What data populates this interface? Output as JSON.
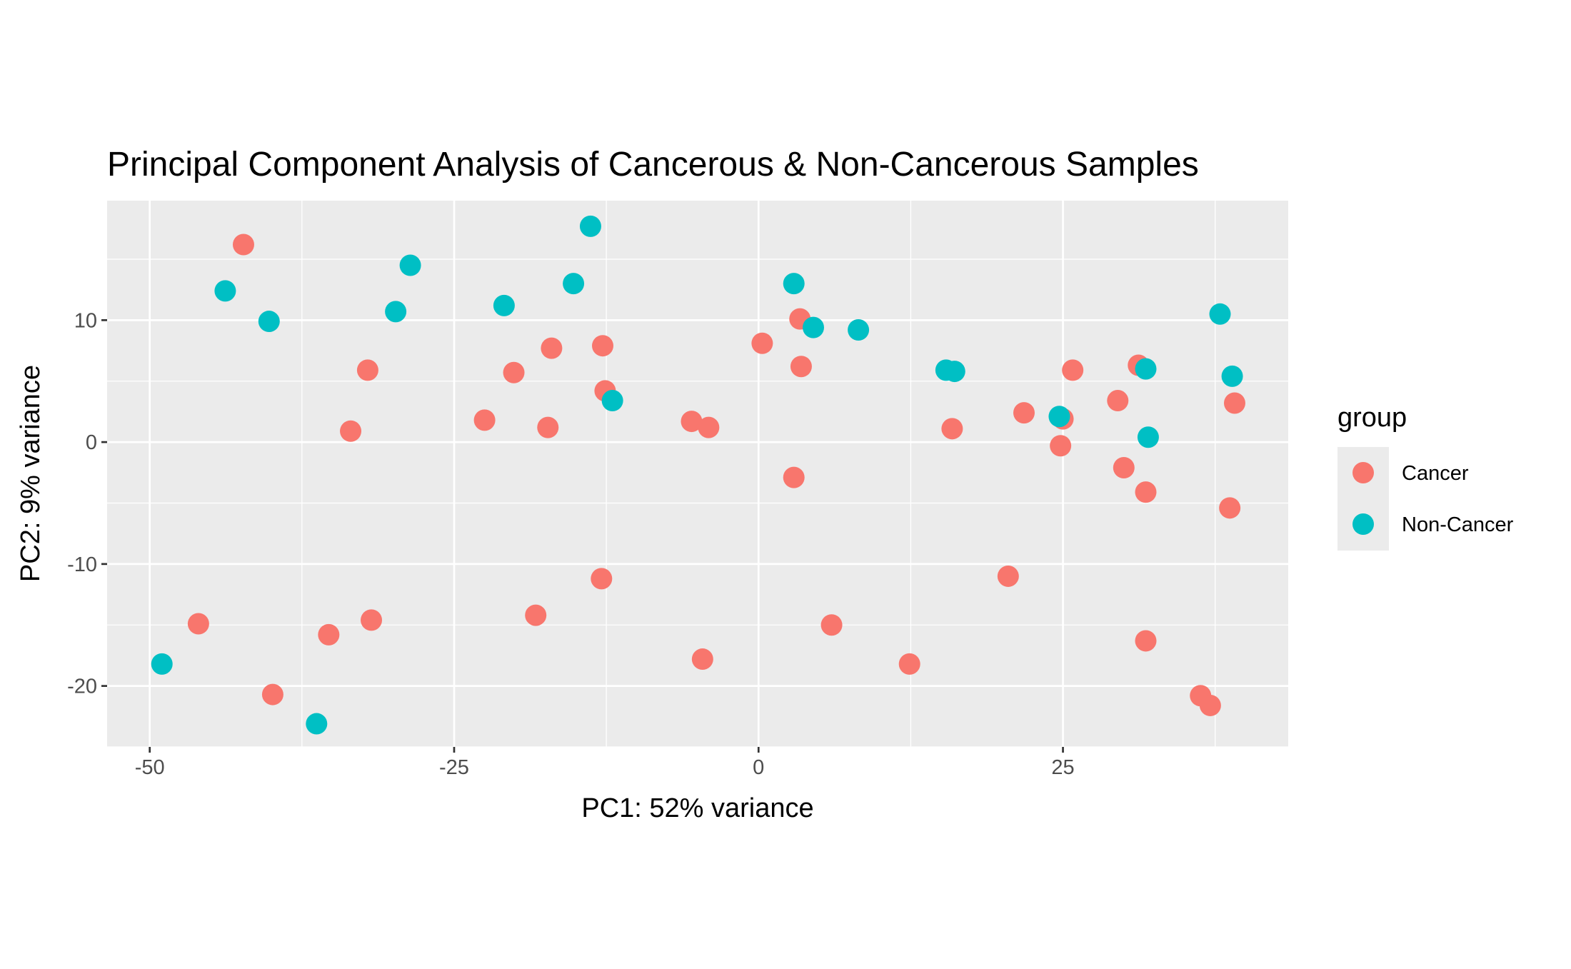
{
  "chart_data": {
    "type": "scatter",
    "title": "Principal Component Analysis of Cancerous & Non-Cancerous Samples",
    "xlabel": "PC1: 52% variance",
    "ylabel": "PC2: 9% variance",
    "xlim": [
      -53.5,
      43.5
    ],
    "ylim": [
      -25,
      19.8
    ],
    "x_ticks": [
      -50,
      -25,
      0,
      25
    ],
    "x_tick_labels": [
      "-50",
      "-25",
      "0",
      "25"
    ],
    "y_ticks": [
      -20,
      -10,
      0,
      10
    ],
    "y_tick_labels": [
      "-20",
      "-10",
      "0",
      "10"
    ],
    "grid": true,
    "legend": {
      "title": "group",
      "position": "right",
      "entries": [
        "Cancer",
        "Non-Cancer"
      ]
    },
    "colors": {
      "Cancer": "#F8766D",
      "Non-Cancer": "#00BFC4"
    },
    "series": [
      {
        "name": "Cancer",
        "points": [
          [
            -42.3,
            16.2
          ],
          [
            -46.0,
            -14.9
          ],
          [
            -39.9,
            -20.7
          ],
          [
            -35.3,
            -15.8
          ],
          [
            -32.1,
            5.9
          ],
          [
            -33.5,
            0.9
          ],
          [
            -31.8,
            -14.6
          ],
          [
            -22.5,
            1.8
          ],
          [
            -20.1,
            5.7
          ],
          [
            -18.3,
            -14.2
          ],
          [
            -17.3,
            1.2
          ],
          [
            -17.0,
            7.7
          ],
          [
            -12.8,
            7.9
          ],
          [
            -12.6,
            4.2
          ],
          [
            -12.9,
            -11.2
          ],
          [
            -5.5,
            1.7
          ],
          [
            -4.1,
            1.2
          ],
          [
            -4.6,
            -17.8
          ],
          [
            0.3,
            8.1
          ],
          [
            3.4,
            10.1
          ],
          [
            3.5,
            6.2
          ],
          [
            2.9,
            -2.9
          ],
          [
            6.0,
            -15.0
          ],
          [
            12.4,
            -18.2
          ],
          [
            15.9,
            1.1
          ],
          [
            20.5,
            -11.0
          ],
          [
            21.8,
            2.4
          ],
          [
            24.8,
            -0.3
          ],
          [
            25.0,
            1.9
          ],
          [
            25.8,
            5.9
          ],
          [
            29.5,
            3.4
          ],
          [
            30.0,
            -2.1
          ],
          [
            31.2,
            6.3
          ],
          [
            31.8,
            -4.1
          ],
          [
            31.8,
            -16.3
          ],
          [
            36.3,
            -20.8
          ],
          [
            37.1,
            -21.6
          ],
          [
            38.7,
            -5.4
          ],
          [
            39.1,
            3.2
          ]
        ]
      },
      {
        "name": "Non-Cancer",
        "points": [
          [
            -43.8,
            12.4
          ],
          [
            -40.2,
            9.9
          ],
          [
            -28.6,
            14.5
          ],
          [
            -29.8,
            10.7
          ],
          [
            -20.9,
            11.2
          ],
          [
            -15.2,
            13.0
          ],
          [
            -13.8,
            17.7
          ],
          [
            -12.0,
            3.4
          ],
          [
            2.9,
            13.0
          ],
          [
            4.5,
            9.4
          ],
          [
            8.2,
            9.2
          ],
          [
            15.4,
            5.9
          ],
          [
            16.1,
            5.8
          ],
          [
            24.7,
            2.1
          ],
          [
            31.8,
            6.0
          ],
          [
            32.0,
            0.4
          ],
          [
            37.9,
            10.5
          ],
          [
            38.9,
            5.4
          ],
          [
            -49.0,
            -18.2
          ],
          [
            -36.3,
            -23.1
          ]
        ]
      }
    ]
  }
}
